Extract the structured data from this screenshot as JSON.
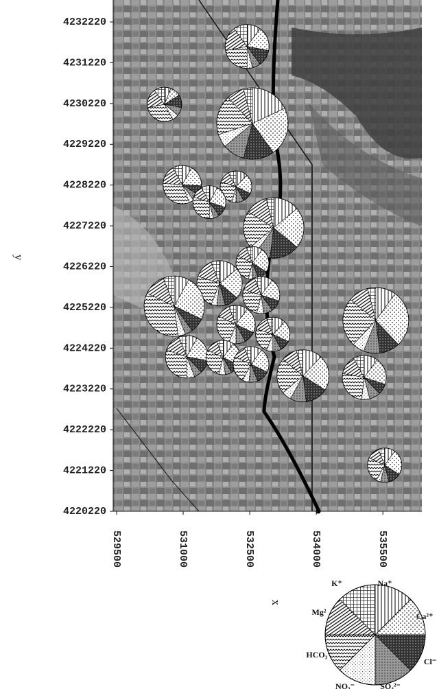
{
  "chart_data": {
    "type": "pie-map",
    "xlabel": "x",
    "ylabel": "y",
    "xlim": [
      529423,
      536378
    ],
    "ylim": [
      4220220,
      4232759
    ],
    "xticks": [
      529500,
      531000,
      532500,
      534000,
      535500
    ],
    "yticks": [
      4232220,
      4231220,
      4230220,
      4229220,
      4228220,
      4227220,
      4226220,
      4225220,
      4224220,
      4223220,
      4222220,
      4221220,
      4220220
    ],
    "ions": [
      "Na⁺",
      "Ca²⁺",
      "Cl⁻",
      "SO₄²⁻",
      "NO₃⁻",
      "HCO₃⁻",
      "Mg²",
      "K⁺"
    ],
    "pies": [
      {
        "x": 532440,
        "y": 4231620,
        "size": 32,
        "values": [
          10,
          18,
          12,
          6,
          4,
          22,
          18,
          10
        ]
      },
      {
        "x": 530580,
        "y": 4230200,
        "size": 25,
        "values": [
          6,
          10,
          12,
          8,
          6,
          30,
          18,
          10
        ]
      },
      {
        "x": 532560,
        "y": 4229730,
        "size": 52,
        "values": [
          18,
          22,
          14,
          10,
          6,
          18,
          8,
          4
        ]
      },
      {
        "x": 530980,
        "y": 4228230,
        "size": 28,
        "values": [
          8,
          18,
          8,
          6,
          4,
          32,
          16,
          8
        ]
      },
      {
        "x": 532190,
        "y": 4228180,
        "size": 23,
        "values": [
          12,
          20,
          10,
          8,
          4,
          26,
          12,
          8
        ]
      },
      {
        "x": 531590,
        "y": 4227800,
        "size": 24,
        "values": [
          8,
          22,
          10,
          6,
          4,
          30,
          12,
          8
        ]
      },
      {
        "x": 533040,
        "y": 4227170,
        "size": 44,
        "values": [
          14,
          22,
          16,
          8,
          4,
          20,
          12,
          4
        ]
      },
      {
        "x": 532560,
        "y": 4226310,
        "size": 24,
        "values": [
          10,
          24,
          10,
          6,
          4,
          28,
          12,
          6
        ]
      },
      {
        "x": 531820,
        "y": 4225810,
        "size": 33,
        "values": [
          14,
          22,
          10,
          6,
          4,
          24,
          14,
          6
        ]
      },
      {
        "x": 532760,
        "y": 4225520,
        "size": 27,
        "values": [
          10,
          20,
          10,
          8,
          6,
          26,
          14,
          6
        ]
      },
      {
        "x": 530800,
        "y": 4225250,
        "size": 44,
        "values": [
          8,
          24,
          8,
          4,
          4,
          34,
          12,
          6
        ]
      },
      {
        "x": 532190,
        "y": 4224800,
        "size": 28,
        "values": [
          10,
          22,
          10,
          8,
          6,
          26,
          12,
          6
        ]
      },
      {
        "x": 533020,
        "y": 4224560,
        "size": 25,
        "values": [
          12,
          20,
          10,
          8,
          6,
          24,
          14,
          6
        ]
      },
      {
        "x": 535340,
        "y": 4224900,
        "size": 48,
        "values": [
          10,
          28,
          10,
          8,
          6,
          24,
          10,
          4
        ]
      },
      {
        "x": 531080,
        "y": 4224010,
        "size": 31,
        "values": [
          8,
          20,
          10,
          6,
          6,
          30,
          14,
          6
        ]
      },
      {
        "x": 531900,
        "y": 4223990,
        "size": 25,
        "values": [
          10,
          22,
          10,
          6,
          6,
          28,
          12,
          6
        ]
      },
      {
        "x": 532530,
        "y": 4223820,
        "size": 26,
        "values": [
          10,
          22,
          12,
          8,
          6,
          24,
          12,
          6
        ]
      },
      {
        "x": 533700,
        "y": 4223540,
        "size": 38,
        "values": [
          12,
          22,
          14,
          10,
          6,
          22,
          10,
          4
        ]
      },
      {
        "x": 535080,
        "y": 4223500,
        "size": 32,
        "values": [
          10,
          20,
          8,
          8,
          6,
          26,
          14,
          8
        ]
      },
      {
        "x": 535540,
        "y": 4221350,
        "size": 25,
        "values": [
          10,
          24,
          12,
          8,
          4,
          24,
          12,
          6
        ]
      }
    ]
  }
}
